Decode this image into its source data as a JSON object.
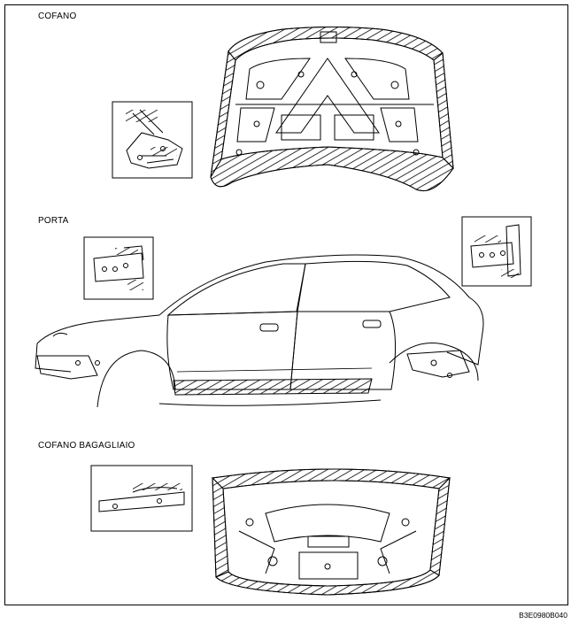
{
  "sections": {
    "hood": {
      "label": "COFANO"
    },
    "door": {
      "label": "PORTA"
    },
    "trunk": {
      "label": "COFANO BAGAGLIAIO"
    }
  },
  "figure_code": "B3E0980B040"
}
